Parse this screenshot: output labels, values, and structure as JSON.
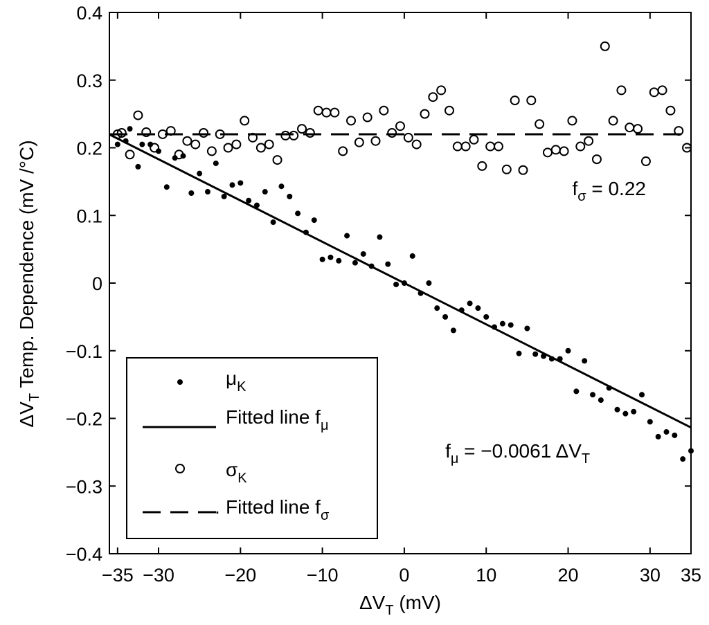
{
  "chart_data": {
    "type": "scatter",
    "title": "",
    "xlabel": {
      "main": "ΔV",
      "sub": "T",
      "rest": " (mV)"
    },
    "ylabel": {
      "main": "ΔV",
      "sub": "T",
      "rest": " Temp. Dependence (mV /°C)"
    },
    "xlim": [
      -36,
      35
    ],
    "ylim": [
      -0.4,
      0.4
    ],
    "x_ticks": [
      -35,
      -30,
      -20,
      -10,
      0,
      10,
      20,
      30,
      35
    ],
    "x_tick_labels": [
      "−35",
      "−30",
      "−20",
      "−10",
      "0",
      "10",
      "20",
      "30",
      "35"
    ],
    "y_ticks": [
      -0.4,
      -0.3,
      -0.2,
      -0.1,
      0,
      0.1,
      0.2,
      0.3,
      0.4
    ],
    "y_tick_labels": [
      "−0.4",
      "−0.3",
      "−0.2",
      "−0.1",
      "0",
      "0.1",
      "0.2",
      "0.3",
      "0.4"
    ],
    "grid": false,
    "legend_position": "bottom-left",
    "series": [
      {
        "name": "μK",
        "label_main": "μ",
        "label_sub": "K",
        "marker": "dot",
        "points": [
          [
            -35,
            0.205
          ],
          [
            -34,
            0.21
          ],
          [
            -33.5,
            0.228
          ],
          [
            -32.5,
            0.172
          ],
          [
            -32,
            0.205
          ],
          [
            -31,
            0.205
          ],
          [
            -30,
            0.195
          ],
          [
            -29,
            0.142
          ],
          [
            -28,
            0.185
          ],
          [
            -27,
            0.188
          ],
          [
            -26,
            0.133
          ],
          [
            -25,
            0.162
          ],
          [
            -24,
            0.135
          ],
          [
            -23,
            0.177
          ],
          [
            -22,
            0.128
          ],
          [
            -21,
            0.145
          ],
          [
            -20,
            0.148
          ],
          [
            -19,
            0.122
          ],
          [
            -18,
            0.115
          ],
          [
            -17,
            0.135
          ],
          [
            -16,
            0.09
          ],
          [
            -15,
            0.143
          ],
          [
            -14,
            0.128
          ],
          [
            -13,
            0.103
          ],
          [
            -12,
            0.075
          ],
          [
            -11,
            0.093
          ],
          [
            -10,
            0.035
          ],
          [
            -9,
            0.038
          ],
          [
            -8,
            0.033
          ],
          [
            -7,
            0.07
          ],
          [
            -6,
            0.03
          ],
          [
            -5,
            0.043
          ],
          [
            -4,
            0.025
          ],
          [
            -3,
            0.068
          ],
          [
            -2,
            0.028
          ],
          [
            -1,
            -0.002
          ],
          [
            0,
            0
          ],
          [
            1,
            0.04
          ],
          [
            2,
            -0.015
          ],
          [
            3,
            0
          ],
          [
            4,
            -0.037
          ],
          [
            5,
            -0.05
          ],
          [
            6,
            -0.07
          ],
          [
            7,
            -0.04
          ],
          [
            8,
            -0.03
          ],
          [
            9,
            -0.037
          ],
          [
            10,
            -0.05
          ],
          [
            11,
            -0.065
          ],
          [
            12,
            -0.06
          ],
          [
            13,
            -0.062
          ],
          [
            14,
            -0.104
          ],
          [
            15,
            -0.067
          ],
          [
            16,
            -0.105
          ],
          [
            17,
            -0.108
          ],
          [
            18,
            -0.112
          ],
          [
            19,
            -0.112
          ],
          [
            20,
            -0.1
          ],
          [
            21,
            -0.16
          ],
          [
            22,
            -0.115
          ],
          [
            23,
            -0.165
          ],
          [
            24,
            -0.173
          ],
          [
            25,
            -0.155
          ],
          [
            26,
            -0.187
          ],
          [
            27,
            -0.193
          ],
          [
            28,
            -0.19
          ],
          [
            29,
            -0.165
          ],
          [
            30,
            -0.205
          ],
          [
            31,
            -0.227
          ],
          [
            32,
            -0.22
          ],
          [
            33,
            -0.225
          ],
          [
            34,
            -0.26
          ],
          [
            35,
            -0.248
          ]
        ]
      },
      {
        "name": "Fitted line fμ",
        "label_main": "Fitted line f",
        "label_sub": "μ",
        "line": "solid",
        "x": [
          -36,
          35
        ],
        "y": [
          0.2196,
          -0.2135
        ]
      },
      {
        "name": "σK",
        "label_main": "σ",
        "label_sub": "K",
        "marker": "circle",
        "points": [
          [
            -35,
            0.22
          ],
          [
            -34.5,
            0.222
          ],
          [
            -33.5,
            0.19
          ],
          [
            -32.5,
            0.248
          ],
          [
            -31.5,
            0.223
          ],
          [
            -30.5,
            0.2
          ],
          [
            -29.5,
            0.22
          ],
          [
            -28.5,
            0.225
          ],
          [
            -27.5,
            0.19
          ],
          [
            -26.5,
            0.21
          ],
          [
            -25.5,
            0.205
          ],
          [
            -24.5,
            0.222
          ],
          [
            -23.5,
            0.195
          ],
          [
            -22.5,
            0.22
          ],
          [
            -21.5,
            0.2
          ],
          [
            -20.5,
            0.205
          ],
          [
            -19.5,
            0.24
          ],
          [
            -18.5,
            0.215
          ],
          [
            -17.5,
            0.2
          ],
          [
            -16.5,
            0.205
          ],
          [
            -15.5,
            0.182
          ],
          [
            -14.5,
            0.218
          ],
          [
            -13.5,
            0.218
          ],
          [
            -12.5,
            0.228
          ],
          [
            -11.5,
            0.222
          ],
          [
            -10.5,
            0.255
          ],
          [
            -9.5,
            0.252
          ],
          [
            -8.5,
            0.252
          ],
          [
            -7.5,
            0.195
          ],
          [
            -6.5,
            0.24
          ],
          [
            -5.5,
            0.208
          ],
          [
            -4.5,
            0.245
          ],
          [
            -3.5,
            0.21
          ],
          [
            -2.5,
            0.255
          ],
          [
            -1.5,
            0.222
          ],
          [
            -0.5,
            0.232
          ],
          [
            0.5,
            0.215
          ],
          [
            1.5,
            0.205
          ],
          [
            2.5,
            0.25
          ],
          [
            3.5,
            0.275
          ],
          [
            4.5,
            0.285
          ],
          [
            5.5,
            0.255
          ],
          [
            6.5,
            0.202
          ],
          [
            7.5,
            0.202
          ],
          [
            8.5,
            0.212
          ],
          [
            9.5,
            0.173
          ],
          [
            10.5,
            0.202
          ],
          [
            11.5,
            0.202
          ],
          [
            12.5,
            0.168
          ],
          [
            13.5,
            0.27
          ],
          [
            14.5,
            0.167
          ],
          [
            15.5,
            0.27
          ],
          [
            16.5,
            0.235
          ],
          [
            17.5,
            0.193
          ],
          [
            18.5,
            0.197
          ],
          [
            19.5,
            0.195
          ],
          [
            20.5,
            0.24
          ],
          [
            21.5,
            0.202
          ],
          [
            22.5,
            0.21
          ],
          [
            23.5,
            0.183
          ],
          [
            24.5,
            0.35
          ],
          [
            25.5,
            0.24
          ],
          [
            26.5,
            0.285
          ],
          [
            27.5,
            0.23
          ],
          [
            28.5,
            0.228
          ],
          [
            29.5,
            0.18
          ],
          [
            30.5,
            0.282
          ],
          [
            31.5,
            0.285
          ],
          [
            32.5,
            0.255
          ],
          [
            33.5,
            0.225
          ],
          [
            34.5,
            0.2
          ]
        ]
      },
      {
        "name": "Fitted line fσ",
        "label_main": "Fitted line f",
        "label_sub": "σ",
        "line": "dashed",
        "x": [
          -36,
          35
        ],
        "y": [
          0.22,
          0.22
        ]
      }
    ],
    "annotations": [
      {
        "id": "sigma_fit",
        "x": 20.5,
        "y": 0.13,
        "main": "f",
        "sub": "σ",
        "rest": " = 0.22"
      },
      {
        "id": "mu_fit",
        "x": 5,
        "y": -0.258,
        "main": "f",
        "sub": "μ",
        "rest": " = −0.0061 ΔV",
        "sub2": "T"
      }
    ]
  },
  "legend": {
    "extra_mark": "."
  }
}
